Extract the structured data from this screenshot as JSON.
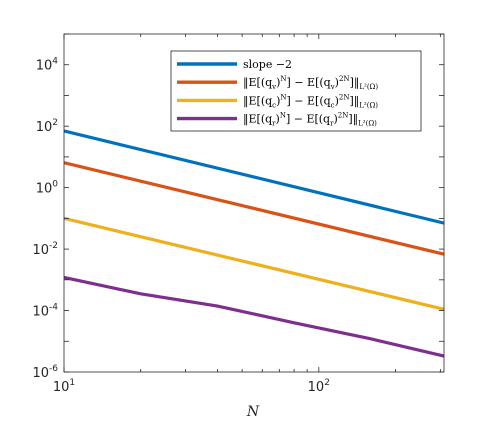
{
  "chart_data": {
    "type": "line",
    "title": "",
    "xlabel": "N",
    "ylabel": "",
    "xscale": "log",
    "yscale": "log",
    "xlim": [
      10,
      310
    ],
    "ylim": [
      1e-06,
      100000.0
    ],
    "grid": false,
    "legend_position": "top-right",
    "x_ticks": [
      {
        "value": 10,
        "base": "10",
        "exp": "1"
      },
      {
        "value": 100,
        "base": "10",
        "exp": "2"
      }
    ],
    "y_ticks": [
      {
        "value": 1e-06,
        "base": "10",
        "exp": "-6"
      },
      {
        "value": 0.0001,
        "base": "10",
        "exp": "-4"
      },
      {
        "value": 0.01,
        "base": "10",
        "exp": "-2"
      },
      {
        "value": 1,
        "base": "10",
        "exp": "0"
      },
      {
        "value": 100,
        "base": "10",
        "exp": "2"
      },
      {
        "value": 10000,
        "base": "10",
        "exp": "4"
      }
    ],
    "series": [
      {
        "legend": {
          "main": "slope −2",
          "sub": ""
        },
        "color": "#0072BD",
        "x": [
          10,
          310
        ],
        "y": [
          70,
          0.07
        ]
      },
      {
        "legend": {
          "main": "‖E[(q_v)^N] − E[(q_v)^{2N}]‖",
          "sub": "L²(Ω)"
        },
        "color": "#D95319",
        "x": [
          10,
          310
        ],
        "y": [
          6.5,
          0.0068
        ]
      },
      {
        "legend": {
          "main": "‖E[(q_c)^N] − E[(q_c)^{2N}]‖",
          "sub": "L²(Ω)"
        },
        "color": "#EDB120",
        "x": [
          10,
          310
        ],
        "y": [
          0.1,
          0.00011
        ]
      },
      {
        "legend": {
          "main": "‖E[(q_r)^N] − E[(q_r)^{2N}]‖",
          "sub": "L²(Ω)"
        },
        "color": "#7E2F8E",
        "x": [
          10,
          20,
          40,
          80,
          160,
          310
        ],
        "y": [
          0.0012,
          0.00035,
          0.00014,
          4e-05,
          1.2e-05,
          3.3e-06
        ]
      }
    ]
  }
}
